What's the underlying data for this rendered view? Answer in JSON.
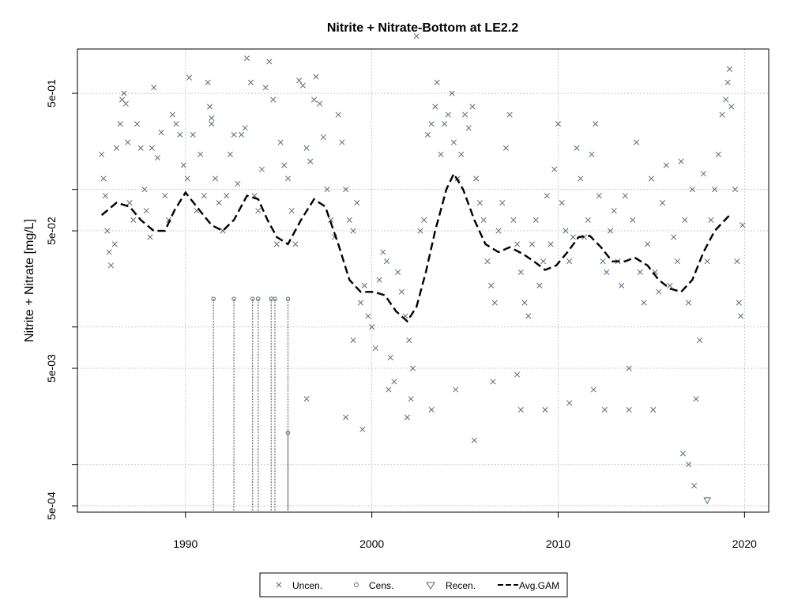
{
  "chart_data": {
    "type": "scatter",
    "title": "Nitrite + Nitrate-Bottom at LE2.2",
    "ylabel": "Nitrite + Nitrate [mg/L]",
    "xlabel": "",
    "x_ticks": [
      1990,
      2000,
      2010,
      2020
    ],
    "x_tick_labels": [
      "1990",
      "2000",
      "2010",
      "2020"
    ],
    "y_scale": "log",
    "y_ticks": [
      0.0005,
      0.005,
      0.05,
      0.5
    ],
    "y_tick_labels": [
      "5e-04",
      "5e-03",
      "5e-02",
      "5e-01"
    ],
    "y_minor_gridlines": [
      0.001,
      0.01,
      0.1
    ],
    "xlim": [
      1984.2,
      2021.3
    ],
    "ylim": [
      0.00045,
      1.05
    ],
    "grid": true,
    "legend_position": "bottom",
    "colors": {
      "points": "#5a6a7c",
      "gam": "#000000",
      "grid": "#c8c8c8",
      "censored_line": "#808080"
    },
    "legend": [
      {
        "label": "Uncen.",
        "symbol": "x-mark"
      },
      {
        "label": "Cens.",
        "symbol": "circle"
      },
      {
        "label": "Recen.",
        "symbol": "down-triangle"
      },
      {
        "label": "Avg.GAM",
        "symbol": "dashed-line"
      }
    ],
    "series": [
      {
        "name": "Uncen.",
        "marker": "x",
        "points": [
          [
            1985.5,
            0.18
          ],
          [
            1985.6,
            0.12
          ],
          [
            1985.7,
            0.09
          ],
          [
            1985.8,
            0.05
          ],
          [
            1985.9,
            0.035
          ],
          [
            1986.0,
            0.028
          ],
          [
            1986.2,
            0.04
          ],
          [
            1986.3,
            0.2
          ],
          [
            1986.5,
            0.3
          ],
          [
            1986.6,
            0.45
          ],
          [
            1986.7,
            0.5
          ],
          [
            1986.8,
            0.42
          ],
          [
            1986.9,
            0.22
          ],
          [
            1987.0,
            0.08
          ],
          [
            1987.2,
            0.06
          ],
          [
            1987.4,
            0.3
          ],
          [
            1987.6,
            0.2
          ],
          [
            1987.8,
            0.1
          ],
          [
            1987.9,
            0.07
          ],
          [
            1988.1,
            0.045
          ],
          [
            1988.3,
            0.55
          ],
          [
            1988.5,
            0.17
          ],
          [
            1988.7,
            0.26
          ],
          [
            1988.9,
            0.09
          ],
          [
            1989.1,
            0.06
          ],
          [
            1989.3,
            0.35
          ],
          [
            1989.5,
            0.3
          ],
          [
            1989.7,
            0.25
          ],
          [
            1989.9,
            0.15
          ],
          [
            1990.1,
            0.12
          ],
          [
            1990.2,
            0.65
          ],
          [
            1990.4,
            0.25
          ],
          [
            1990.6,
            0.07
          ],
          [
            1990.8,
            0.18
          ],
          [
            1991.0,
            0.09
          ],
          [
            1991.2,
            0.6
          ],
          [
            1991.3,
            0.4
          ],
          [
            1991.4,
            0.33
          ],
          [
            1991.6,
            0.12
          ],
          [
            1991.8,
            0.08
          ],
          [
            1992.0,
            0.05
          ],
          [
            1992.2,
            0.09
          ],
          [
            1992.4,
            0.18
          ],
          [
            1992.6,
            0.25
          ],
          [
            1992.8,
            0.11
          ],
          [
            1993.0,
            0.25
          ],
          [
            1993.2,
            0.28
          ],
          [
            1993.3,
            0.9
          ],
          [
            1993.5,
            0.6
          ],
          [
            1993.7,
            0.09
          ],
          [
            1993.9,
            0.07
          ],
          [
            1994.1,
            0.14
          ],
          [
            1994.3,
            0.55
          ],
          [
            1994.5,
            0.85
          ],
          [
            1994.7,
            0.45
          ],
          [
            1994.9,
            0.04
          ],
          [
            1995.1,
            0.22
          ],
          [
            1995.3,
            0.15
          ],
          [
            1995.5,
            0.12
          ],
          [
            1995.7,
            0.07
          ],
          [
            1995.9,
            0.04
          ],
          [
            1996.1,
            0.62
          ],
          [
            1996.3,
            0.57
          ],
          [
            1996.5,
            0.2
          ],
          [
            1996.7,
            0.16
          ],
          [
            1996.9,
            0.45
          ],
          [
            1997.0,
            0.66
          ],
          [
            1997.2,
            0.42
          ],
          [
            1997.4,
            0.24
          ],
          [
            1997.6,
            0.1
          ],
          [
            1997.8,
            0.06
          ],
          [
            1998.0,
            0.045
          ],
          [
            1998.2,
            0.35
          ],
          [
            1998.4,
            0.22
          ],
          [
            1998.6,
            0.1
          ],
          [
            1998.8,
            0.06
          ],
          [
            1999.0,
            0.05
          ],
          [
            1999.2,
            0.08
          ],
          [
            1999.4,
            0.015
          ],
          [
            1999.6,
            0.02
          ],
          [
            1999.8,
            0.012
          ],
          [
            2000.0,
            0.01
          ],
          [
            2000.2,
            0.007
          ],
          [
            2000.4,
            0.022
          ],
          [
            2000.6,
            0.035
          ],
          [
            2000.8,
            0.03
          ],
          [
            2001.0,
            0.006
          ],
          [
            2001.2,
            0.004
          ],
          [
            2001.4,
            0.025
          ],
          [
            2001.6,
            0.018
          ],
          [
            2001.8,
            0.012
          ],
          [
            2002.0,
            0.008
          ],
          [
            2002.2,
            0.005
          ],
          [
            2002.4,
            1.3
          ],
          [
            2002.6,
            0.05
          ],
          [
            2002.8,
            0.06
          ],
          [
            2003.0,
            0.25
          ],
          [
            2003.2,
            0.3
          ],
          [
            2003.4,
            0.4
          ],
          [
            2003.5,
            0.6
          ],
          [
            2003.7,
            0.18
          ],
          [
            2003.9,
            0.3
          ],
          [
            2004.1,
            0.35
          ],
          [
            2004.3,
            0.5
          ],
          [
            2004.4,
            0.22
          ],
          [
            2004.6,
            0.12
          ],
          [
            2004.8,
            0.18
          ],
          [
            2005.0,
            0.35
          ],
          [
            2005.2,
            0.28
          ],
          [
            2005.4,
            0.4
          ],
          [
            2005.6,
            0.12
          ],
          [
            2005.8,
            0.08
          ],
          [
            2006.0,
            0.06
          ],
          [
            2006.2,
            0.03
          ],
          [
            2006.4,
            0.02
          ],
          [
            2006.6,
            0.015
          ],
          [
            2006.8,
            0.05
          ],
          [
            2007.0,
            0.08
          ],
          [
            2007.2,
            0.2
          ],
          [
            2007.4,
            0.35
          ],
          [
            2007.6,
            0.06
          ],
          [
            2007.8,
            0.04
          ],
          [
            2008.0,
            0.025
          ],
          [
            2008.2,
            0.015
          ],
          [
            2008.4,
            0.012
          ],
          [
            2008.6,
            0.04
          ],
          [
            2008.8,
            0.06
          ],
          [
            2009.0,
            0.02
          ],
          [
            2009.2,
            0.03
          ],
          [
            2009.4,
            0.09
          ],
          [
            2009.6,
            0.04
          ],
          [
            2009.8,
            0.14
          ],
          [
            2010.0,
            0.3
          ],
          [
            2010.2,
            0.08
          ],
          [
            2010.4,
            0.05
          ],
          [
            2010.6,
            0.03
          ],
          [
            2010.8,
            0.045
          ],
          [
            2011.0,
            0.2
          ],
          [
            2011.2,
            0.12
          ],
          [
            2011.4,
            0.045
          ],
          [
            2011.6,
            0.06
          ],
          [
            2011.8,
            0.18
          ],
          [
            2012.0,
            0.3
          ],
          [
            2012.2,
            0.09
          ],
          [
            2012.4,
            0.03
          ],
          [
            2012.6,
            0.025
          ],
          [
            2012.8,
            0.05
          ],
          [
            2013.0,
            0.07
          ],
          [
            2013.2,
            0.03
          ],
          [
            2013.4,
            0.02
          ],
          [
            2013.6,
            0.09
          ],
          [
            2013.8,
            0.005
          ],
          [
            2014.0,
            0.06
          ],
          [
            2014.2,
            0.22
          ],
          [
            2014.4,
            0.025
          ],
          [
            2014.6,
            0.015
          ],
          [
            2014.8,
            0.04
          ],
          [
            2015.0,
            0.12
          ],
          [
            2015.2,
            0.025
          ],
          [
            2015.4,
            0.018
          ],
          [
            2015.6,
            0.08
          ],
          [
            2015.8,
            0.15
          ],
          [
            2016.0,
            0.02
          ],
          [
            2016.2,
            0.045
          ],
          [
            2016.4,
            0.03
          ],
          [
            2016.6,
            0.16
          ],
          [
            2016.8,
            0.06
          ],
          [
            2017.0,
            0.015
          ],
          [
            2017.2,
            0.1
          ],
          [
            2017.4,
            0.003
          ],
          [
            2017.6,
            0.008
          ],
          [
            2017.8,
            0.13
          ],
          [
            2018.0,
            0.03
          ],
          [
            2018.2,
            0.06
          ],
          [
            2018.4,
            0.1
          ],
          [
            2018.6,
            0.18
          ],
          [
            2018.8,
            0.35
          ],
          [
            2019.0,
            0.45
          ],
          [
            2019.1,
            0.6
          ],
          [
            2019.2,
            0.75
          ],
          [
            2019.3,
            0.4
          ],
          [
            2019.5,
            0.1
          ],
          [
            2019.6,
            0.03
          ],
          [
            2019.7,
            0.015
          ],
          [
            2019.8,
            0.012
          ],
          [
            2019.9,
            0.055
          ],
          [
            1991.4,
            0.3
          ],
          [
            1988.2,
            0.2
          ],
          [
            2000.9,
            0.0035
          ],
          [
            2001.9,
            0.0022
          ],
          [
            2005.5,
            0.0015
          ],
          [
            2012.5,
            0.0025
          ],
          [
            2015.1,
            0.0025
          ],
          [
            2016.7,
            0.0012
          ],
          [
            2017.0,
            0.001
          ],
          [
            2017.3,
            0.0007
          ],
          [
            2008.0,
            0.0025
          ],
          [
            2003.2,
            0.0025
          ],
          [
            1998.6,
            0.0022
          ],
          [
            1999.5,
            0.0018
          ],
          [
            2006.5,
            0.004
          ],
          [
            2007.8,
            0.0045
          ],
          [
            2009.3,
            0.0025
          ],
          [
            2010.6,
            0.0028
          ],
          [
            2011.9,
            0.0035
          ],
          [
            2004.5,
            0.0035
          ],
          [
            2002.1,
            0.003
          ],
          [
            1996.5,
            0.003
          ],
          [
            1999.0,
            0.008
          ],
          [
            2013.8,
            0.0025
          ]
        ]
      },
      {
        "name": "Cens.",
        "marker": "circle",
        "points": [
          [
            1991.5,
            0.016
          ],
          [
            1992.6,
            0.016
          ],
          [
            1993.6,
            0.016
          ],
          [
            1993.9,
            0.016
          ],
          [
            1994.6,
            0.016
          ],
          [
            1994.8,
            0.016
          ],
          [
            1995.5,
            0.016
          ],
          [
            1995.5,
            0.0017
          ]
        ]
      },
      {
        "name": "Recen.",
        "marker": "triangle",
        "points": [
          [
            2018.0,
            0.00055
          ]
        ]
      },
      {
        "name": "Avg.GAM",
        "line": "dashed",
        "points": [
          [
            1985.5,
            0.065
          ],
          [
            1986.3,
            0.08
          ],
          [
            1987.0,
            0.075
          ],
          [
            1987.6,
            0.06
          ],
          [
            1988.3,
            0.05
          ],
          [
            1988.9,
            0.05
          ],
          [
            1989.4,
            0.07
          ],
          [
            1990.0,
            0.095
          ],
          [
            1990.6,
            0.075
          ],
          [
            1991.4,
            0.055
          ],
          [
            1992.0,
            0.05
          ],
          [
            1992.6,
            0.06
          ],
          [
            1993.3,
            0.09
          ],
          [
            1993.9,
            0.085
          ],
          [
            1994.4,
            0.06
          ],
          [
            1994.9,
            0.045
          ],
          [
            1995.5,
            0.04
          ],
          [
            1996.2,
            0.06
          ],
          [
            1996.9,
            0.085
          ],
          [
            1997.5,
            0.075
          ],
          [
            1998.2,
            0.04
          ],
          [
            1998.8,
            0.022
          ],
          [
            1999.4,
            0.018
          ],
          [
            2000.1,
            0.018
          ],
          [
            2000.7,
            0.017
          ],
          [
            2001.3,
            0.013
          ],
          [
            2001.9,
            0.011
          ],
          [
            2002.4,
            0.014
          ],
          [
            2002.9,
            0.025
          ],
          [
            2003.4,
            0.05
          ],
          [
            2004.0,
            0.1
          ],
          [
            2004.4,
            0.13
          ],
          [
            2004.9,
            0.1
          ],
          [
            2005.5,
            0.06
          ],
          [
            2006.1,
            0.04
          ],
          [
            2006.8,
            0.035
          ],
          [
            2007.4,
            0.038
          ],
          [
            2008.1,
            0.034
          ],
          [
            2008.7,
            0.03
          ],
          [
            2009.3,
            0.026
          ],
          [
            2009.9,
            0.028
          ],
          [
            2010.5,
            0.035
          ],
          [
            2011.1,
            0.045
          ],
          [
            2011.7,
            0.046
          ],
          [
            2012.3,
            0.038
          ],
          [
            2012.9,
            0.03
          ],
          [
            2013.6,
            0.03
          ],
          [
            2014.1,
            0.032
          ],
          [
            2014.8,
            0.028
          ],
          [
            2015.4,
            0.022
          ],
          [
            2016.0,
            0.019
          ],
          [
            2016.6,
            0.018
          ],
          [
            2017.2,
            0.022
          ],
          [
            2017.8,
            0.035
          ],
          [
            2018.4,
            0.05
          ],
          [
            2019.2,
            0.065
          ]
        ]
      }
    ]
  }
}
